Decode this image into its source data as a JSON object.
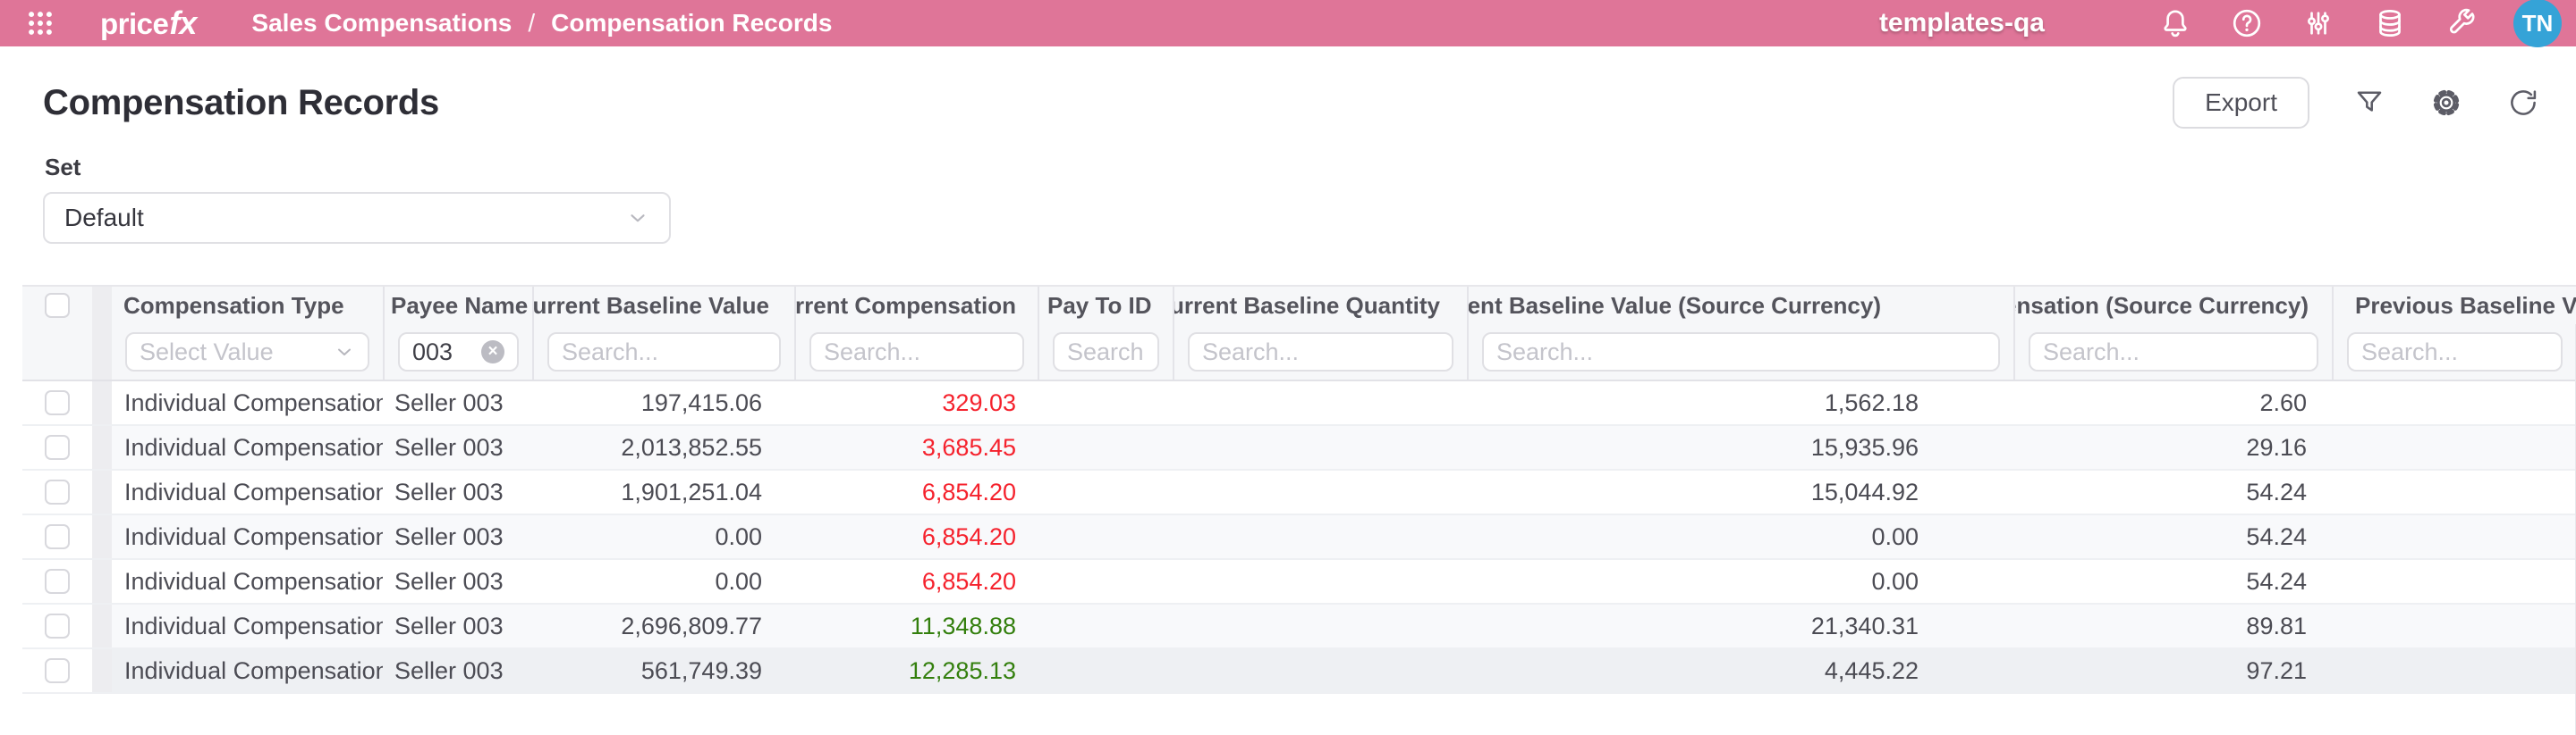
{
  "header": {
    "menu_icon": "waffle-grid-icon",
    "brand_price": "price",
    "brand_fx": "fx",
    "breadcrumb": {
      "section": "Sales Compensations",
      "separator": "/",
      "page": "Compensation Records"
    },
    "environment": "templates-qa",
    "right_icons": [
      "bell-icon",
      "help-icon",
      "sliders-icon",
      "database-icon",
      "wrench-icon"
    ],
    "avatar_initials": "TN",
    "colors": {
      "bar": "#df7598",
      "avatar": "#35a3d7"
    }
  },
  "page": {
    "title": "Compensation Records",
    "export_label": "Export",
    "toolbar_icons": [
      "filter-funnel-icon",
      "settings-gear-icon",
      "refresh-icon"
    ]
  },
  "set_filter": {
    "label": "Set",
    "value": "Default"
  },
  "table": {
    "columns": [
      {
        "key": "compensation_type",
        "label": "Compensation Type",
        "filter": {
          "type": "select",
          "placeholder": "Select Value"
        }
      },
      {
        "key": "payee_name",
        "label": "Payee Name",
        "filter": {
          "type": "text",
          "value": "003",
          "clearable": true
        }
      },
      {
        "key": "current_baseline_value",
        "label": "Current Baseline Value",
        "filter": {
          "type": "search",
          "placeholder": "Search..."
        }
      },
      {
        "key": "current_compensation",
        "label": "Current Compensation",
        "filter": {
          "type": "search",
          "placeholder": "Search..."
        }
      },
      {
        "key": "pay_to_id",
        "label": "Pay To ID",
        "filter": {
          "type": "search",
          "placeholder": "Search..."
        }
      },
      {
        "key": "current_baseline_quantity",
        "label": "Current Baseline Quantity",
        "filter": {
          "type": "search",
          "placeholder": "Search..."
        }
      },
      {
        "key": "current_baseline_value_source",
        "label": "Current Baseline Value (Source Currency)",
        "filter": {
          "type": "search",
          "placeholder": "Search..."
        }
      },
      {
        "key": "current_compensation_source",
        "label": "Current Compensation (Source Currency)",
        "filter": {
          "type": "search",
          "placeholder": "Search..."
        }
      },
      {
        "key": "previous_baseline_value",
        "label": "Previous Baseline Value",
        "filter": {
          "type": "search",
          "placeholder": "Search..."
        }
      }
    ],
    "rows": [
      {
        "compensation_type": "Individual Compensation",
        "payee_name": "Seller 003",
        "current_baseline_value": "197,415.06",
        "current_compensation": "329.03",
        "trend": "negative",
        "pay_to_id": "",
        "current_baseline_quantity": "",
        "current_baseline_value_source": "1,562.18",
        "current_compensation_source": "2.60",
        "previous_baseline_value": ""
      },
      {
        "compensation_type": "Individual Compensation",
        "payee_name": "Seller 003",
        "current_baseline_value": "2,013,852.55",
        "current_compensation": "3,685.45",
        "trend": "negative",
        "pay_to_id": "",
        "current_baseline_quantity": "",
        "current_baseline_value_source": "15,935.96",
        "current_compensation_source": "29.16",
        "previous_baseline_value": ""
      },
      {
        "compensation_type": "Individual Compensation",
        "payee_name": "Seller 003",
        "current_baseline_value": "1,901,251.04",
        "current_compensation": "6,854.20",
        "trend": "negative",
        "pay_to_id": "",
        "current_baseline_quantity": "",
        "current_baseline_value_source": "15,044.92",
        "current_compensation_source": "54.24",
        "previous_baseline_value": ""
      },
      {
        "compensation_type": "Individual Compensation",
        "payee_name": "Seller 003",
        "current_baseline_value": "0.00",
        "current_compensation": "6,854.20",
        "trend": "negative",
        "pay_to_id": "",
        "current_baseline_quantity": "",
        "current_baseline_value_source": "0.00",
        "current_compensation_source": "54.24",
        "previous_baseline_value": ""
      },
      {
        "compensation_type": "Individual Compensation",
        "payee_name": "Seller 003",
        "current_baseline_value": "0.00",
        "current_compensation": "6,854.20",
        "trend": "negative",
        "pay_to_id": "",
        "current_baseline_quantity": "",
        "current_baseline_value_source": "0.00",
        "current_compensation_source": "54.24",
        "previous_baseline_value": ""
      },
      {
        "compensation_type": "Individual Compensation",
        "payee_name": "Seller 003",
        "current_baseline_value": "2,696,809.77",
        "current_compensation": "11,348.88",
        "trend": "positive",
        "pay_to_id": "",
        "current_baseline_quantity": "",
        "current_baseline_value_source": "21,340.31",
        "current_compensation_source": "89.81",
        "previous_baseline_value": ""
      },
      {
        "compensation_type": "Individual Compensation",
        "payee_name": "Seller 003",
        "current_baseline_value": "561,749.39",
        "current_compensation": "12,285.13",
        "trend": "positive",
        "pay_to_id": "",
        "current_baseline_quantity": "",
        "current_baseline_value_source": "4,445.22",
        "current_compensation_source": "97.21",
        "previous_baseline_value": ""
      }
    ]
  },
  "colors": {
    "negative_value": "#f5222d",
    "positive_value": "#337f0d"
  }
}
